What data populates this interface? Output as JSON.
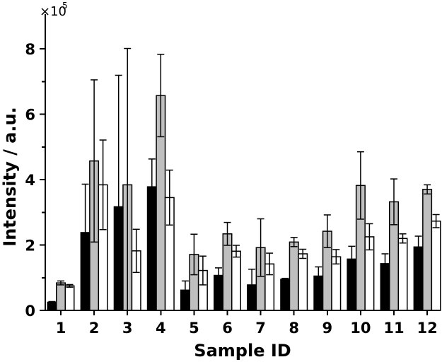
{
  "chart_data": {
    "type": "bar",
    "xlabel": "Sample ID",
    "ylabel": "Intensity / a.u.",
    "scale_multiplier": "×10",
    "scale_exponent": "5",
    "categories": [
      "1",
      "2",
      "3",
      "4",
      "5",
      "6",
      "7",
      "8",
      "9",
      "10",
      "11",
      "12"
    ],
    "ylim": [
      0,
      9
    ],
    "yticks": [
      0,
      2,
      4,
      6,
      8
    ],
    "grid": false,
    "legend": "none",
    "series": [
      {
        "color": "#000000",
        "values": [
          0.25,
          2.38,
          3.17,
          3.78,
          0.62,
          1.07,
          0.78,
          0.95,
          1.05,
          1.57,
          1.43,
          1.94
        ],
        "errors": [
          0.02,
          1.48,
          4.02,
          0.85,
          0.28,
          0.23,
          0.48,
          0.03,
          0.28,
          0.39,
          0.3,
          0.33
        ]
      },
      {
        "color": "#bfbfbf",
        "values": [
          0.84,
          4.57,
          3.84,
          6.57,
          1.71,
          2.34,
          1.92,
          2.09,
          2.42,
          3.82,
          3.32,
          3.7
        ],
        "errors": [
          0.06,
          2.48,
          4.17,
          1.26,
          0.62,
          0.35,
          0.88,
          0.14,
          0.5,
          1.03,
          0.7,
          0.14
        ]
      },
      {
        "color": "#ffffff",
        "values": [
          0.75,
          3.84,
          1.82,
          3.45,
          1.22,
          1.81,
          1.42,
          1.73,
          1.64,
          2.25,
          2.2,
          2.73
        ],
        "errors": [
          0.04,
          1.37,
          0.66,
          0.84,
          0.44,
          0.18,
          0.33,
          0.14,
          0.22,
          0.4,
          0.14,
          0.2
        ]
      }
    ]
  }
}
